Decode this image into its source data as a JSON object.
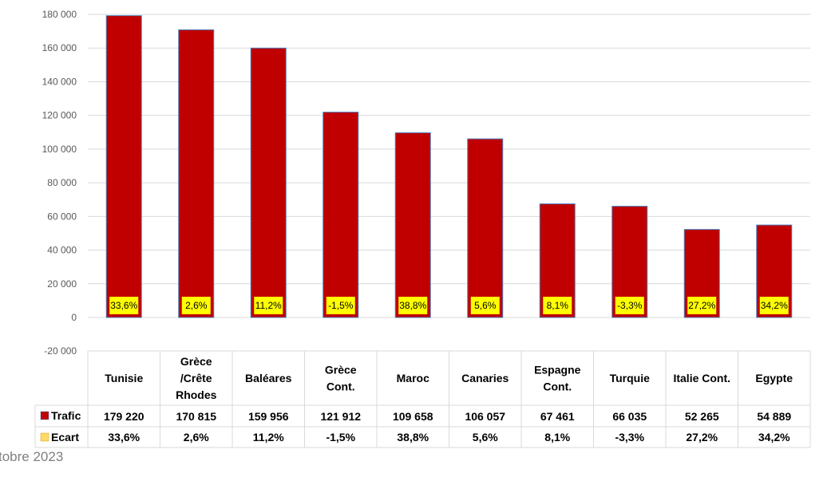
{
  "chart_data": {
    "type": "bar",
    "categories": [
      [
        "Tunisie"
      ],
      [
        "Grèce",
        "/Crête",
        "Rhodes"
      ],
      [
        "Baléares"
      ],
      [
        "Grèce",
        "Cont."
      ],
      [
        "Maroc"
      ],
      [
        "Canaries"
      ],
      [
        "Espagne",
        "Cont."
      ],
      [
        "Turquie"
      ],
      [
        "Italie Cont."
      ],
      [
        "Egypte"
      ]
    ],
    "series": [
      {
        "name": "Trafic",
        "values": [
          179220,
          170815,
          159956,
          121912,
          109658,
          106057,
          67461,
          66035,
          52265,
          54889
        ],
        "color": "#c00000"
      }
    ],
    "values_display": [
      "179 220",
      "170 815",
      "159 956",
      "121 912",
      "109 658",
      "106 057",
      "67 461",
      "66 035",
      "52 265",
      "54 889"
    ],
    "ecart": {
      "name": "Ecart",
      "labels": [
        "33,6%",
        "2,6%",
        "11,2%",
        "-1,5%",
        "38,8%",
        "5,6%",
        "8,1%",
        "-3,3%",
        "27,2%",
        "34,2%"
      ],
      "color": "#ffd966",
      "label_bg": "#ffff00"
    },
    "ylim": [
      -20000,
      180000
    ],
    "yticks": [
      -20000,
      0,
      20000,
      40000,
      60000,
      80000,
      100000,
      120000,
      140000,
      160000,
      180000
    ],
    "ytick_labels": [
      "-20 000",
      "0",
      "20 000",
      "40 000",
      "60 000",
      "80 000",
      "100 000",
      "120 000",
      "140 000",
      "160 000",
      "180 000"
    ],
    "grid": true,
    "data_table": true
  },
  "footer": {
    "text": "tobre 2023"
  }
}
